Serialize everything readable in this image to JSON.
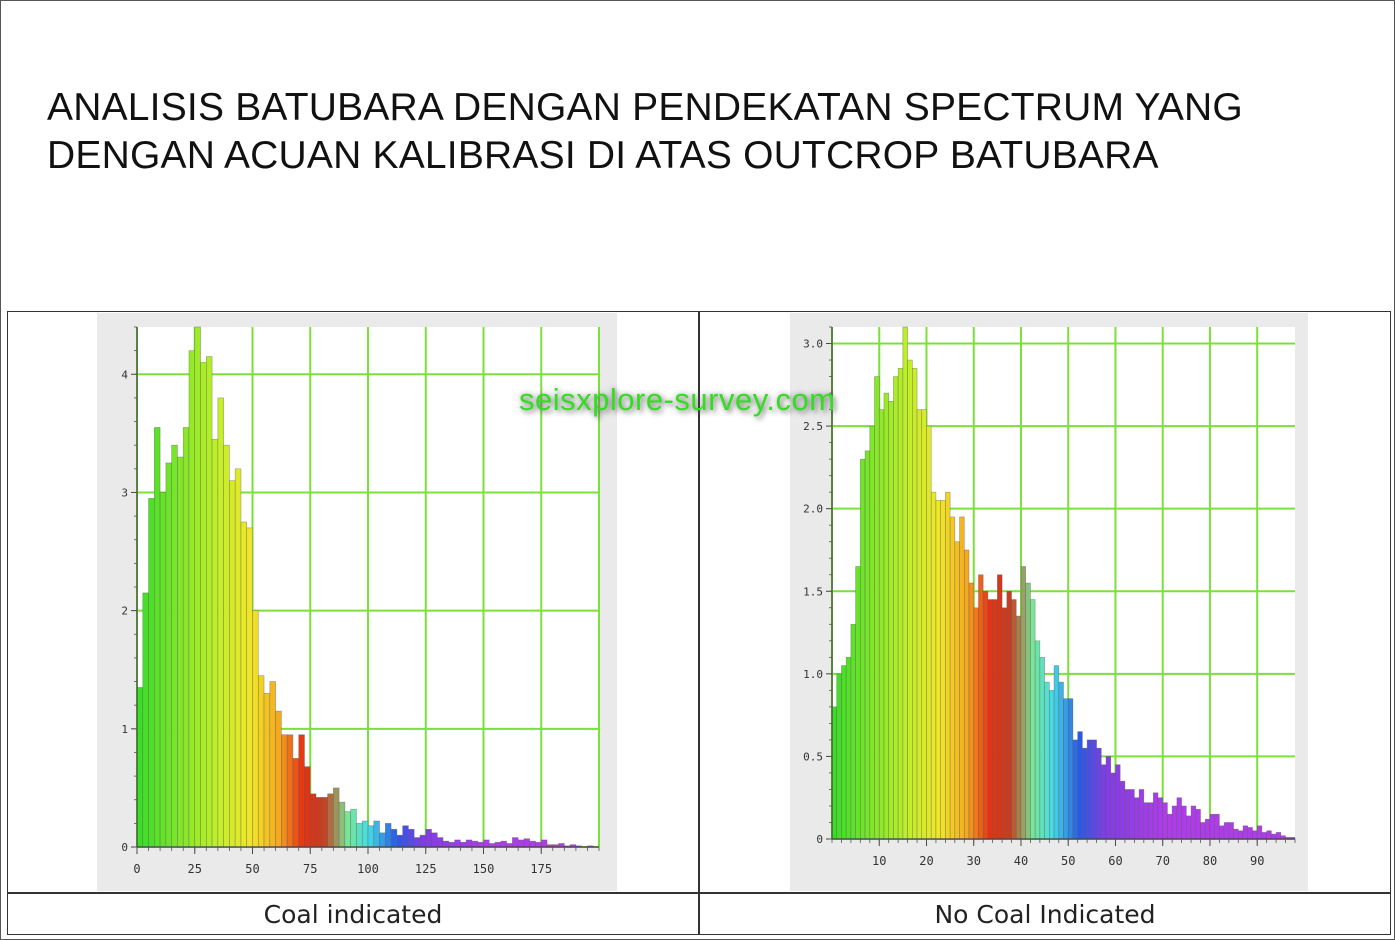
{
  "title_lines": [
    "ANALISIS BATUBARA DENGAN PENDEKATAN SPECTRUM YANG",
    "DENGAN ACUAN KALIBRASI DI ATAS OUTCROP BATUBARA"
  ],
  "watermark": "seisxplore-survey.com",
  "captions": {
    "left": "Coal indicated",
    "right": "No Coal Indicated"
  },
  "colors": {
    "grid": "#7ae03a",
    "plot_bg": "#ffffff",
    "panel_bg": "#eaeaea"
  },
  "chart_data": [
    {
      "type": "bar",
      "xlim": [
        0,
        200
      ],
      "ylim": [
        0,
        4.4
      ],
      "bin_width": 2.5,
      "x_ticks": [
        0,
        25,
        50,
        75,
        100,
        125,
        150,
        175
      ],
      "x_tick_labels": [
        "0",
        "25",
        "50",
        "75",
        "100",
        "125",
        "150",
        "175"
      ],
      "y_ticks": [
        0,
        1,
        2,
        3,
        4
      ],
      "y_tick_labels": [
        "0",
        "1",
        "2",
        "3",
        "4"
      ],
      "grid_x": [
        0,
        25,
        50,
        75,
        100,
        125,
        150,
        175,
        200
      ],
      "grid_y": [
        0,
        1,
        2,
        3,
        4
      ],
      "x": [
        0,
        2.5,
        5,
        7.5,
        10,
        12.5,
        15,
        17.5,
        20,
        22.5,
        25,
        27.5,
        30,
        32.5,
        35,
        37.5,
        40,
        42.5,
        45,
        47.5,
        50,
        52.5,
        55,
        57.5,
        60,
        62.5,
        65,
        67.5,
        70,
        72.5,
        75,
        77.5,
        80,
        82.5,
        85,
        87.5,
        90,
        92.5,
        95,
        97.5,
        100,
        102.5,
        105,
        107.5,
        110,
        112.5,
        115,
        117.5,
        120,
        122.5,
        125,
        127.5,
        130,
        132.5,
        135,
        137.5,
        140,
        142.5,
        145,
        147.5,
        150,
        152.5,
        155,
        157.5,
        160,
        162.5,
        165,
        167.5,
        170,
        172.5,
        175,
        177.5,
        180,
        182.5,
        185,
        187.5,
        190,
        192.5,
        195
      ],
      "values": [
        1.35,
        2.15,
        2.95,
        3.55,
        3.0,
        3.25,
        3.4,
        3.3,
        3.55,
        4.2,
        4.4,
        4.1,
        4.15,
        3.45,
        3.8,
        3.4,
        3.1,
        3.2,
        2.75,
        2.7,
        2.0,
        1.45,
        1.3,
        1.4,
        1.15,
        0.95,
        0.95,
        0.75,
        0.95,
        0.68,
        0.45,
        0.42,
        0.42,
        0.45,
        0.5,
        0.38,
        0.3,
        0.32,
        0.2,
        0.22,
        0.18,
        0.22,
        0.12,
        0.2,
        0.15,
        0.1,
        0.18,
        0.15,
        0.08,
        0.1,
        0.15,
        0.12,
        0.08,
        0.05,
        0.04,
        0.06,
        0.04,
        0.06,
        0.05,
        0.04,
        0.06,
        0.03,
        0.04,
        0.05,
        0.03,
        0.08,
        0.06,
        0.07,
        0.05,
        0.04,
        0.06,
        0.02,
        0.02,
        0.03,
        0.01,
        0.02,
        0.01,
        0.0,
        0.01
      ]
    },
    {
      "type": "bar",
      "xlim": [
        0,
        98
      ],
      "ylim": [
        0,
        3.1
      ],
      "bin_width": 1,
      "x_ticks": [
        10,
        20,
        30,
        40,
        50,
        60,
        70,
        80,
        90
      ],
      "x_tick_labels": [
        "10",
        "20",
        "30",
        "40",
        "50",
        "60",
        "70",
        "80",
        "90"
      ],
      "y_ticks": [
        0,
        0.5,
        1.0,
        1.5,
        2.0,
        2.5,
        3.0
      ],
      "y_tick_labels": [
        "0",
        "0.5",
        "1.0",
        "1.5",
        "2.0",
        "2.5",
        "3.0"
      ],
      "grid_x": [
        0,
        10,
        20,
        30,
        40,
        50,
        60,
        70,
        80,
        90
      ],
      "grid_y": [
        0,
        0.5,
        1.0,
        1.5,
        2.0,
        2.5,
        3.0
      ],
      "x": [
        0,
        1,
        2,
        3,
        4,
        5,
        6,
        7,
        8,
        9,
        10,
        11,
        12,
        13,
        14,
        15,
        16,
        17,
        18,
        19,
        20,
        21,
        22,
        23,
        24,
        25,
        26,
        27,
        28,
        29,
        30,
        31,
        32,
        33,
        34,
        35,
        36,
        37,
        38,
        39,
        40,
        41,
        42,
        43,
        44,
        45,
        46,
        47,
        48,
        49,
        50,
        51,
        52,
        53,
        54,
        55,
        56,
        57,
        58,
        59,
        60,
        61,
        62,
        63,
        64,
        65,
        66,
        67,
        68,
        69,
        70,
        71,
        72,
        73,
        74,
        75,
        76,
        77,
        78,
        79,
        80,
        81,
        82,
        83,
        84,
        85,
        86,
        87,
        88,
        89,
        90,
        91,
        92,
        93,
        94,
        95,
        96,
        97
      ],
      "values": [
        0.8,
        1.0,
        1.05,
        1.1,
        1.3,
        1.65,
        2.3,
        2.35,
        2.5,
        2.8,
        2.6,
        2.7,
        2.65,
        2.8,
        2.85,
        3.1,
        2.9,
        2.85,
        2.6,
        2.6,
        2.5,
        2.1,
        2.05,
        2.05,
        2.1,
        1.95,
        1.8,
        1.95,
        1.75,
        1.55,
        1.4,
        1.6,
        1.5,
        1.45,
        1.45,
        1.6,
        1.4,
        1.5,
        1.45,
        1.35,
        1.65,
        1.55,
        1.45,
        1.2,
        1.1,
        0.95,
        0.9,
        1.05,
        0.95,
        0.85,
        0.85,
        0.6,
        0.65,
        0.55,
        0.6,
        0.6,
        0.55,
        0.45,
        0.5,
        0.4,
        0.45,
        0.35,
        0.3,
        0.3,
        0.25,
        0.3,
        0.22,
        0.22,
        0.28,
        0.25,
        0.22,
        0.15,
        0.2,
        0.25,
        0.2,
        0.14,
        0.2,
        0.18,
        0.1,
        0.12,
        0.15,
        0.15,
        0.08,
        0.1,
        0.1,
        0.06,
        0.05,
        0.08,
        0.07,
        0.05,
        0.08,
        0.04,
        0.05,
        0.03,
        0.04,
        0.02,
        0.01,
        0.01
      ]
    }
  ]
}
